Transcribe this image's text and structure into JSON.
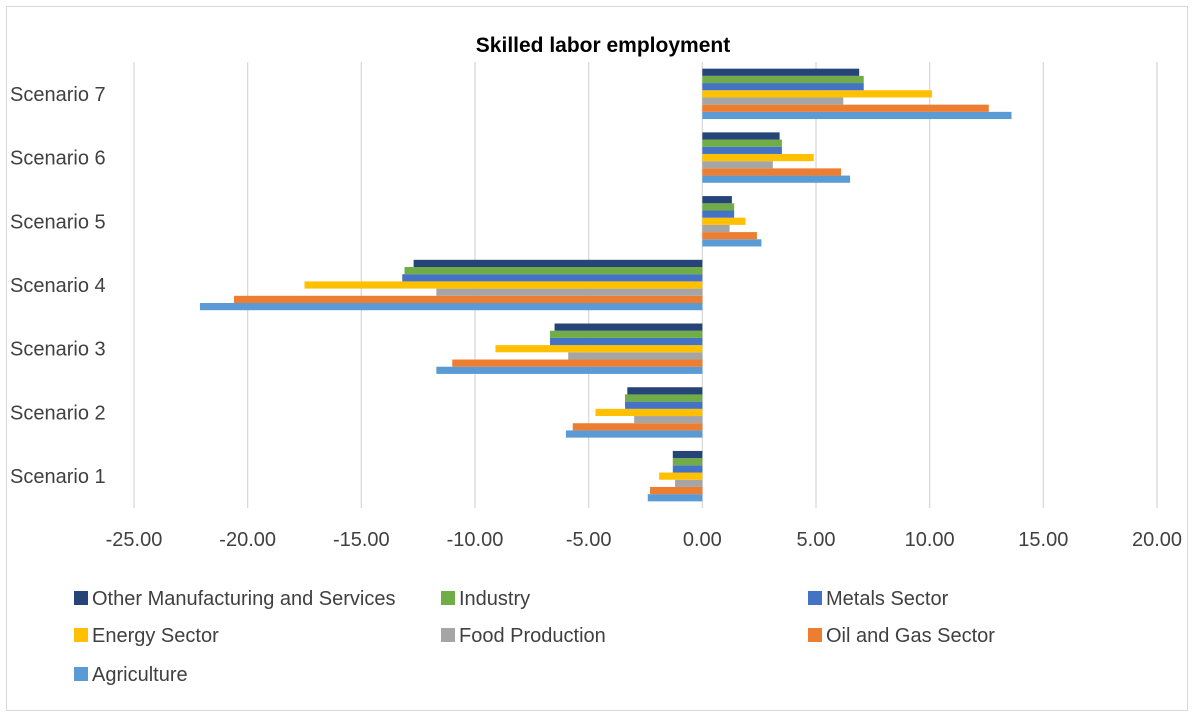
{
  "chart_data": {
    "type": "bar",
    "orientation": "horizontal",
    "title": "Skilled labor employment",
    "xlabel": "",
    "ylabel": "",
    "xlim": [
      -25,
      20
    ],
    "x_ticks": [
      -25,
      -20,
      -15,
      -10,
      -5,
      0,
      5,
      10,
      15,
      20
    ],
    "x_tick_labels": [
      "-25.00",
      "-20.00",
      "-15.00",
      "-10.00",
      "-5.00",
      "0.00",
      "5.00",
      "10.00",
      "15.00",
      "20.00"
    ],
    "grid": true,
    "legend_position": "bottom",
    "categories": [
      "Scenario 1",
      "Scenario 2",
      "Scenario 3",
      "Scenario 4",
      "Scenario 5",
      "Scenario 6",
      "Scenario 7"
    ],
    "series": [
      {
        "name": "Agriculture",
        "color": "#5B9BD5",
        "values": [
          -2.4,
          -6.0,
          -11.7,
          -22.1,
          2.6,
          6.5,
          13.6
        ]
      },
      {
        "name": "Oil and Gas Sector",
        "color": "#ED7D31",
        "values": [
          -2.3,
          -5.7,
          -11.0,
          -20.6,
          2.4,
          6.1,
          12.6
        ]
      },
      {
        "name": "Food Production",
        "color": "#A5A5A5",
        "values": [
          -1.2,
          -3.0,
          -5.9,
          -11.7,
          1.2,
          3.1,
          6.2
        ]
      },
      {
        "name": "Energy Sector",
        "color": "#FFC000",
        "values": [
          -1.9,
          -4.7,
          -9.1,
          -17.5,
          1.9,
          4.9,
          10.1
        ]
      },
      {
        "name": "Metals Sector",
        "color": "#4472C4",
        "values": [
          -1.3,
          -3.4,
          -6.7,
          -13.2,
          1.4,
          3.5,
          7.1
        ]
      },
      {
        "name": "Industry",
        "color": "#70AD47",
        "values": [
          -1.3,
          -3.4,
          -6.7,
          -13.1,
          1.4,
          3.5,
          7.1
        ]
      },
      {
        "name": "Other Manufacturing and Services",
        "color": "#264478",
        "values": [
          -1.3,
          -3.3,
          -6.5,
          -12.7,
          1.3,
          3.4,
          6.9
        ]
      }
    ],
    "legend_order": [
      "Other Manufacturing and Services",
      "Industry",
      "Metals Sector",
      "Energy Sector",
      "Food Production",
      "Oil and Gas Sector",
      "Agriculture"
    ]
  }
}
